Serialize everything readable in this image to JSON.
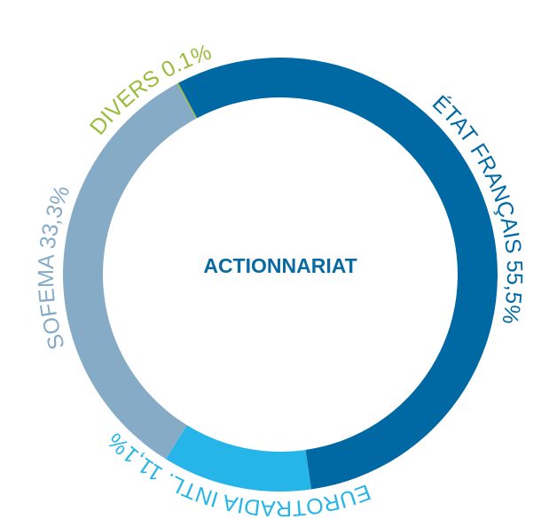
{
  "chart_data": {
    "type": "donut",
    "title": "ACTIONNARIAT",
    "categories": [
      "ÉTAT FRANÇAIS",
      "EUROTRADIA INTL.",
      "SOFEMA",
      "DIVERS"
    ],
    "values": [
      55.5,
      11.1,
      33.3,
      0.1
    ],
    "value_labels": [
      "55,5%",
      "11,1%",
      "33,3%",
      "0.1%"
    ],
    "colors": [
      "#0069a4",
      "#25b5e8",
      "#85abc6",
      "#9bbb3c"
    ]
  }
}
